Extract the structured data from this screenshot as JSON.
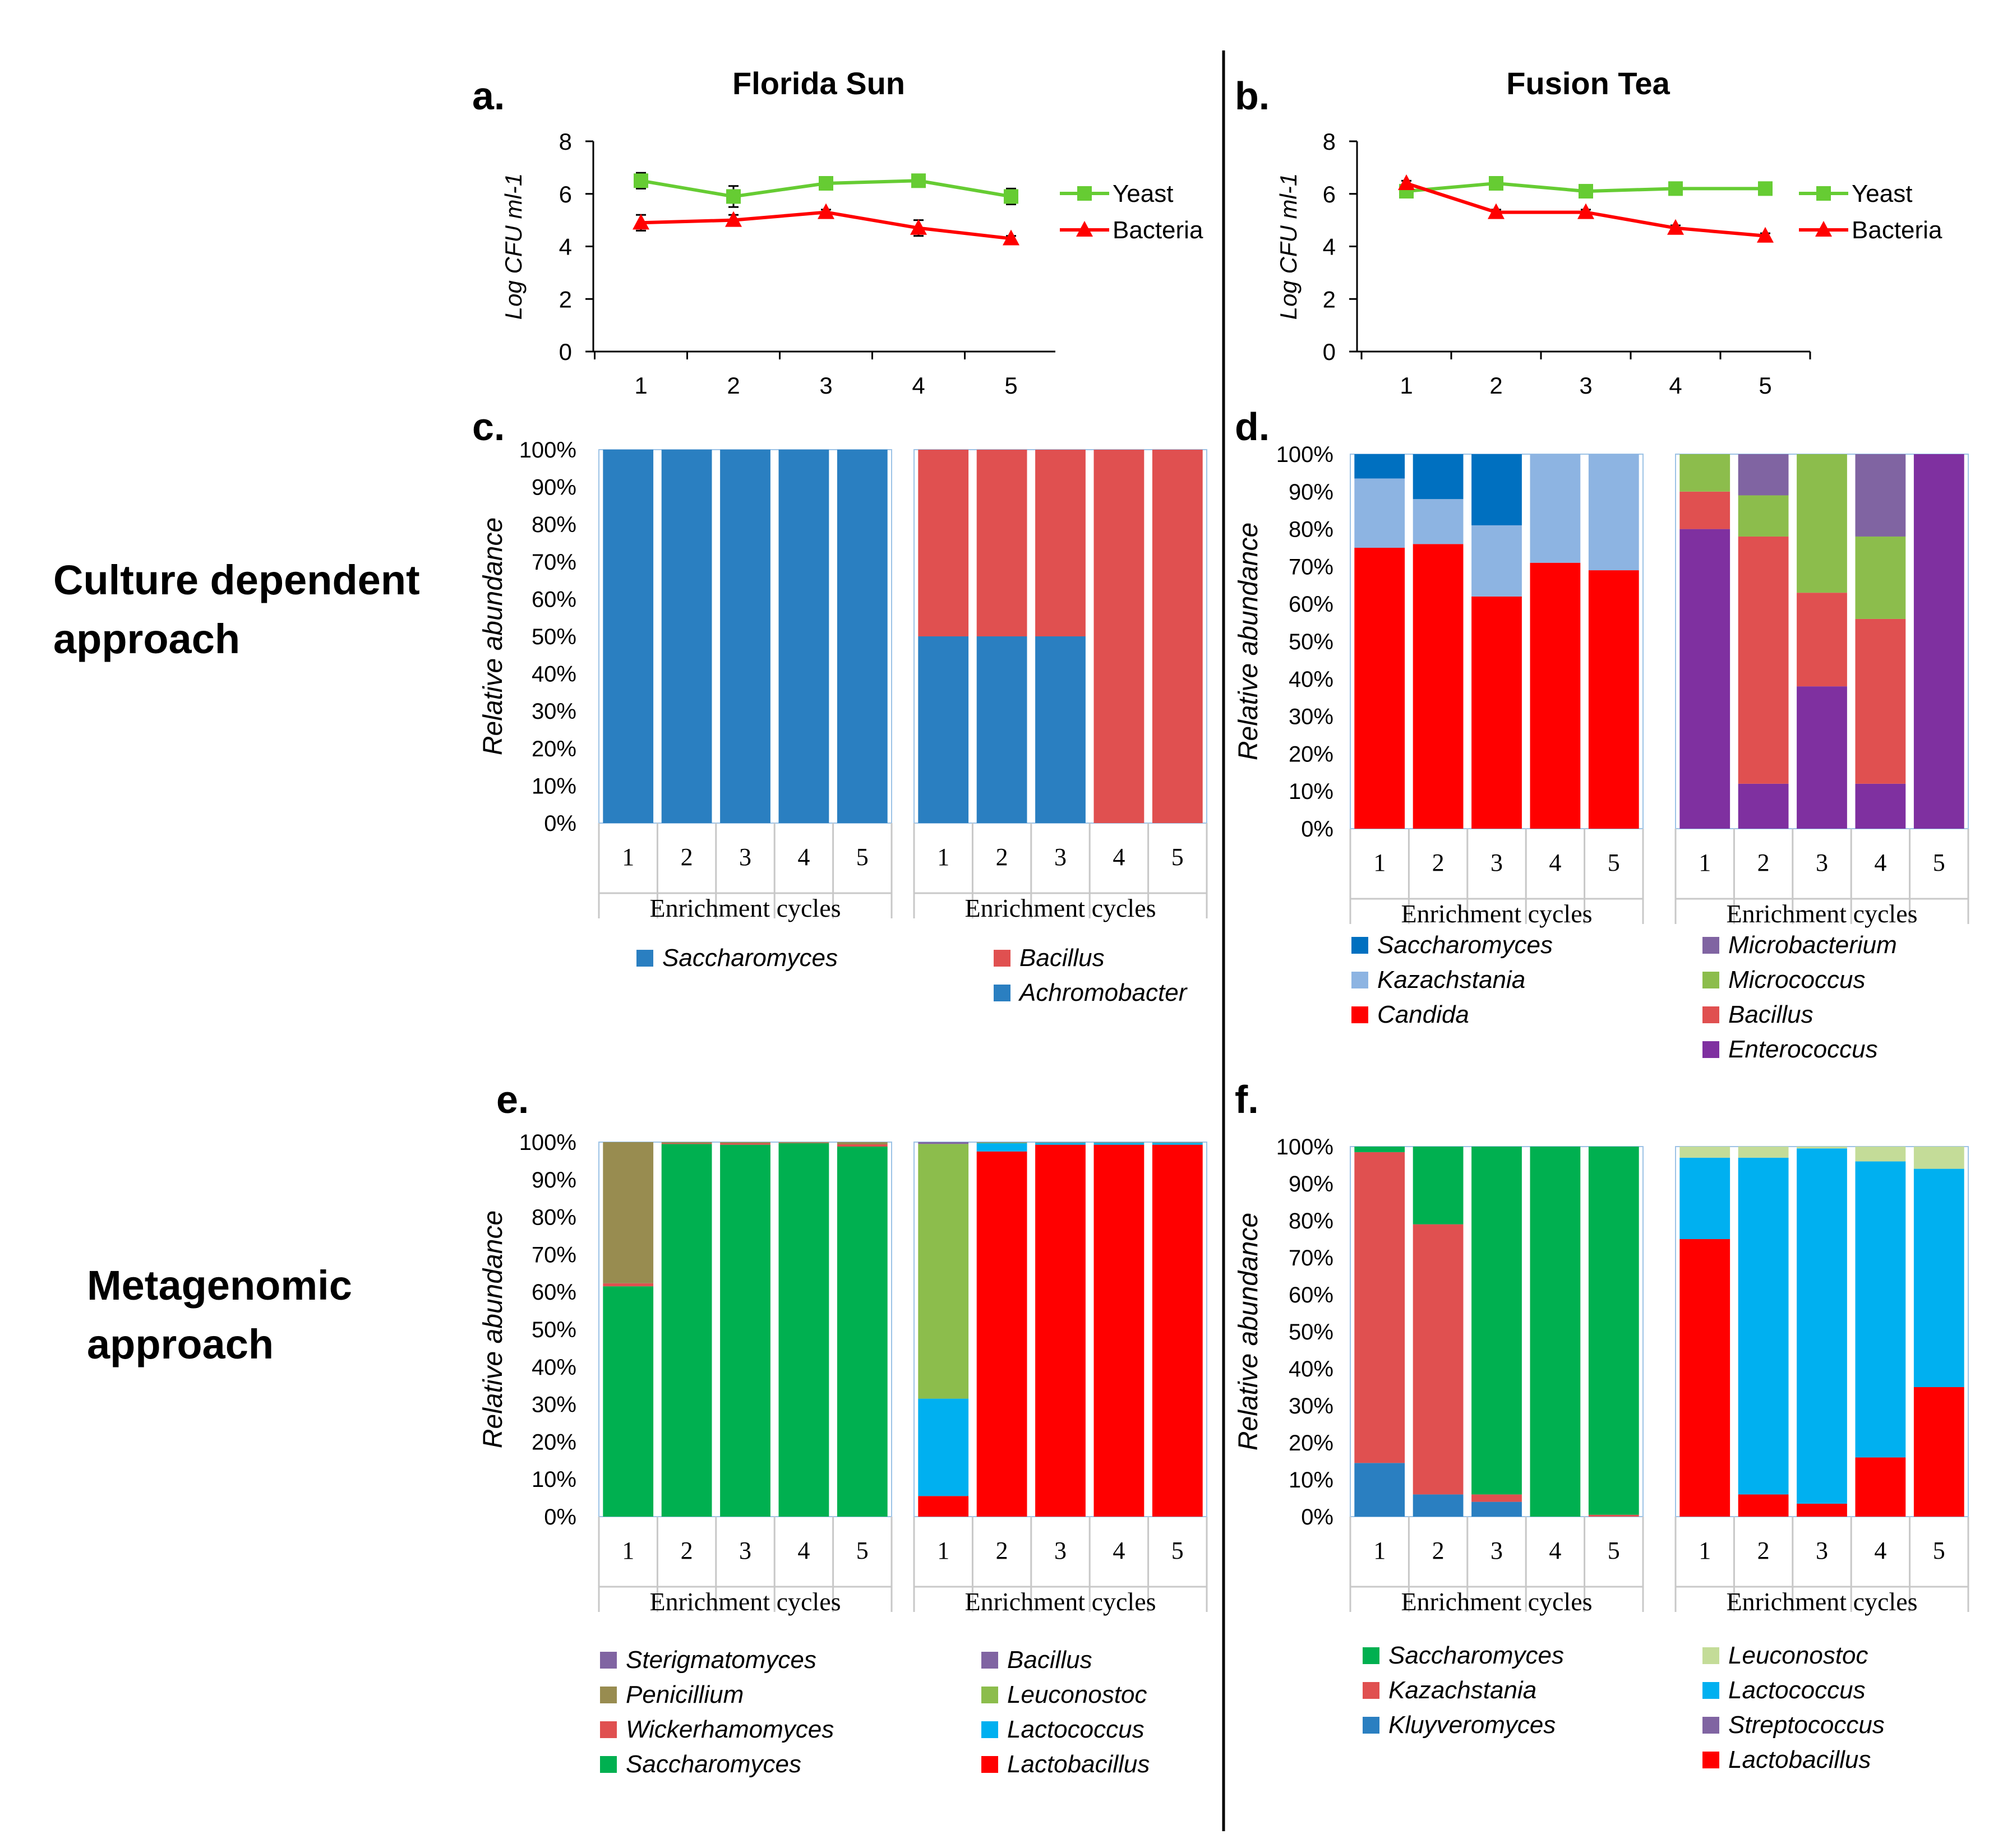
{
  "row_labels": {
    "culture": [
      "Culture dependent",
      "approach"
    ],
    "metagenomic": [
      "Metagenomic",
      "approach"
    ]
  },
  "colors": {
    "yeast": "#66cc33",
    "bacteria": "#ff0000",
    "steel_blue": "#2a7fc1",
    "dodger_blue": "#0070c0",
    "light_blue": "#8db4e2",
    "red": "#ff0000",
    "salmon": "#e05050",
    "purple": "#7f30a0",
    "lavender": "#8064a2",
    "olive_green": "#8cbd4c",
    "khaki": "#988c50",
    "green": "#00b050",
    "cyan": "#00b0f0",
    "pale_green": "#c4dc98",
    "violet": "#8064a2"
  },
  "chart_data": [
    {
      "panel": "a.",
      "type": "line",
      "title": "Florida Sun",
      "ylabel": "Log CFU ml-1",
      "x": [
        1,
        2,
        3,
        4,
        5
      ],
      "xticks": [
        "1",
        "2",
        "3",
        "4",
        "5"
      ],
      "yticks": [
        "0",
        "2",
        "4",
        "6",
        "8"
      ],
      "ylim": [
        0,
        8
      ],
      "series": [
        {
          "name": "Yeast",
          "values": [
            6.5,
            5.9,
            6.4,
            6.5,
            5.9
          ],
          "err": [
            0.3,
            0.4,
            0.1,
            0.1,
            0.3
          ]
        },
        {
          "name": "Bacteria",
          "values": [
            4.9,
            5.0,
            5.3,
            4.7,
            4.3
          ],
          "err": [
            0.3,
            0.2,
            0.1,
            0.3,
            0.1
          ]
        }
      ]
    },
    {
      "panel": "b.",
      "type": "line",
      "title": "Fusion Tea",
      "ylabel": "Log CFU ml-1",
      "x": [
        1,
        2,
        3,
        4,
        5
      ],
      "xticks": [
        "1",
        "2",
        "3",
        "4",
        "5"
      ],
      "yticks": [
        "0",
        "2",
        "4",
        "6",
        "8"
      ],
      "ylim": [
        0,
        8
      ],
      "series": [
        {
          "name": "Yeast",
          "values": [
            6.1,
            6.4,
            6.1,
            6.2,
            6.2
          ],
          "err": [
            0.15,
            0.1,
            0.1,
            0.1,
            0.1
          ]
        },
        {
          "name": "Bacteria",
          "values": [
            6.4,
            5.3,
            5.3,
            4.7,
            4.4
          ],
          "err": [
            0.1,
            0.1,
            0.1,
            0.1,
            0.1
          ]
        }
      ]
    },
    {
      "panel": "c.",
      "type": "bar",
      "ylabel": "Relative abundance",
      "yticks": [
        "0%",
        "10%",
        "20%",
        "30%",
        "40%",
        "50%",
        "60%",
        "70%",
        "80%",
        "90%",
        "100%"
      ],
      "groups": [
        {
          "xlabel": "Enrichment cycles",
          "categories": [
            "1",
            "2",
            "3",
            "4",
            "5"
          ],
          "series": [
            {
              "name": "Saccharomyces",
              "color": "steel_blue",
              "values": [
                100,
                100,
                100,
                100,
                100
              ]
            }
          ],
          "legend": [
            "Saccharomyces"
          ]
        },
        {
          "xlabel": "Enrichment cycles",
          "categories": [
            "1",
            "2",
            "3",
            "4",
            "5"
          ],
          "series": [
            {
              "name": "Achromobacter",
              "color": "steel_blue",
              "values": [
                50,
                50,
                50,
                0,
                0
              ]
            },
            {
              "name": "Bacillus",
              "color": "salmon",
              "values": [
                50,
                50,
                50,
                100,
                100
              ]
            }
          ],
          "legend": [
            "Bacillus",
            "Achromobacter"
          ]
        }
      ]
    },
    {
      "panel": "d.",
      "type": "bar",
      "ylabel": "Relative abundance",
      "yticks": [
        "0%",
        "10%",
        "20%",
        "30%",
        "40%",
        "50%",
        "60%",
        "70%",
        "80%",
        "90%",
        "100%"
      ],
      "groups": [
        {
          "xlabel": "Enrichment cycles",
          "categories": [
            "1",
            "2",
            "3",
            "4",
            "5"
          ],
          "series": [
            {
              "name": "Candida",
              "color": "red",
              "values": [
                75,
                76,
                62,
                71,
                69
              ]
            },
            {
              "name": "Kazachstania",
              "color": "light_blue",
              "values": [
                18.5,
                12,
                19,
                29,
                31
              ]
            },
            {
              "name": "Saccharomyces",
              "color": "dodger_blue",
              "values": [
                6.5,
                12,
                19,
                0,
                0
              ]
            }
          ],
          "legend": [
            "Saccharomyces",
            "Kazachstania",
            "Candida"
          ]
        },
        {
          "xlabel": "Enrichment cycles",
          "categories": [
            "1",
            "2",
            "3",
            "4",
            "5"
          ],
          "series": [
            {
              "name": "Enterococcus",
              "color": "purple",
              "values": [
                80,
                12,
                38,
                12,
                100
              ]
            },
            {
              "name": "Bacillus",
              "color": "salmon",
              "values": [
                10,
                66,
                25,
                44,
                0
              ]
            },
            {
              "name": "Micrococcus",
              "color": "olive_green",
              "values": [
                10,
                11,
                37,
                22,
                0
              ]
            },
            {
              "name": "Microbacterium",
              "color": "lavender",
              "values": [
                0,
                11,
                0,
                22,
                0
              ]
            }
          ],
          "legend": [
            "Microbacterium",
            "Micrococcus",
            "Bacillus",
            "Enterococcus"
          ]
        }
      ]
    },
    {
      "panel": "e.",
      "type": "bar",
      "ylabel": "Relative abundance",
      "yticks": [
        "0%",
        "10%",
        "20%",
        "30%",
        "40%",
        "50%",
        "60%",
        "70%",
        "80%",
        "90%",
        "100%"
      ],
      "groups": [
        {
          "xlabel": "Enrichment cycles",
          "categories": [
            "1",
            "2",
            "3",
            "4",
            "5"
          ],
          "series": [
            {
              "name": "Saccharomyces",
              "color": "green",
              "values": [
                61.5,
                99.5,
                99.3,
                99.7,
                98.8
              ]
            },
            {
              "name": "Wickerhamomyces",
              "color": "salmon",
              "values": [
                0.8,
                0.2,
                0.4,
                0.1,
                0.6
              ]
            },
            {
              "name": "Penicillium",
              "color": "khaki",
              "values": [
                37.7,
                0.3,
                0.3,
                0.2,
                0.6
              ]
            },
            {
              "name": "Sterigmatomyces",
              "color": "violet",
              "values": [
                0,
                0,
                0,
                0,
                0
              ]
            }
          ],
          "legend": [
            "Sterigmatomyces",
            "Penicillium",
            "Wickerhamomyces",
            "Saccharomyces"
          ]
        },
        {
          "xlabel": "Enrichment cycles",
          "categories": [
            "1",
            "2",
            "3",
            "4",
            "5"
          ],
          "series": [
            {
              "name": "Lactobacillus",
              "color": "red",
              "values": [
                5.5,
                97.5,
                99.3,
                99.3,
                99.3
              ]
            },
            {
              "name": "Lactococcus",
              "color": "cyan",
              "values": [
                26,
                2.2,
                0.5,
                0.5,
                0.5
              ]
            },
            {
              "name": "Leuconostoc",
              "color": "olive_green",
              "values": [
                68,
                0.2,
                0.1,
                0.1,
                0.1
              ]
            },
            {
              "name": "Bacillus",
              "color": "violet",
              "values": [
                0.5,
                0.1,
                0.1,
                0.1,
                0.1
              ]
            }
          ],
          "legend": [
            "Bacillus",
            "Leuconostoc",
            "Lactococcus",
            "Lactobacillus"
          ]
        }
      ]
    },
    {
      "panel": "f.",
      "type": "bar",
      "ylabel": "Relative abundance",
      "yticks": [
        "0%",
        "10%",
        "20%",
        "30%",
        "40%",
        "50%",
        "60%",
        "70%",
        "80%",
        "90%",
        "100%"
      ],
      "groups": [
        {
          "xlabel": "Enrichment cycles",
          "categories": [
            "1",
            "2",
            "3",
            "4",
            "5"
          ],
          "series": [
            {
              "name": "Kluyveromyces",
              "color": "steel_blue",
              "values": [
                14.5,
                6,
                4,
                0,
                0
              ]
            },
            {
              "name": "Kazachstania",
              "color": "salmon",
              "values": [
                84,
                73,
                2,
                0,
                0.5
              ]
            },
            {
              "name": "Saccharomyces",
              "color": "green",
              "values": [
                1.5,
                21,
                94,
                100,
                99.5
              ]
            }
          ],
          "legend": [
            "Saccharomyces",
            "Kazachstania",
            "Kluyveromyces"
          ]
        },
        {
          "xlabel": "Enrichment cycles",
          "categories": [
            "1",
            "2",
            "3",
            "4",
            "5"
          ],
          "series": [
            {
              "name": "Lactobacillus",
              "color": "red",
              "values": [
                75,
                6,
                3.5,
                16,
                35
              ]
            },
            {
              "name": "Streptococcus",
              "color": "violet",
              "values": [
                0,
                0,
                0,
                0,
                0
              ]
            },
            {
              "name": "Lactococcus",
              "color": "cyan",
              "values": [
                22,
                91,
                96,
                80,
                59
              ]
            },
            {
              "name": "Leuconostoc",
              "color": "pale_green",
              "values": [
                3,
                3,
                0.5,
                4,
                6
              ]
            }
          ],
          "legend": [
            "Leuconostoc",
            "Lactococcus",
            "Streptococcus",
            "Lactobacillus"
          ]
        }
      ]
    }
  ]
}
